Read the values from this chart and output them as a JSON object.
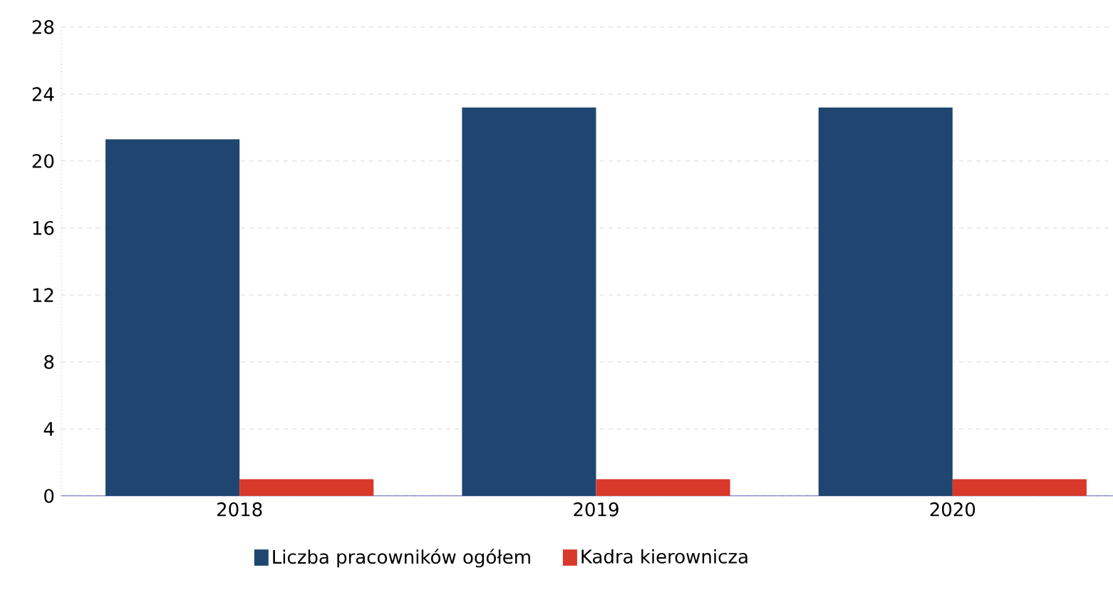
{
  "chart_data": {
    "type": "bar",
    "categories": [
      "2018",
      "2019",
      "2020"
    ],
    "series": [
      {
        "name": "Liczba pracowników ogółem",
        "color": "#1f4670",
        "values": [
          21.3,
          23.2,
          23.2
        ]
      },
      {
        "name": "Kadra kierownicza",
        "color": "#d8392b",
        "values": [
          1,
          1,
          1
        ]
      }
    ],
    "ylim": [
      0,
      28
    ],
    "yticks": [
      0,
      4,
      8,
      12,
      16,
      20,
      24,
      28
    ],
    "grid": "y",
    "legend": "bottom"
  }
}
